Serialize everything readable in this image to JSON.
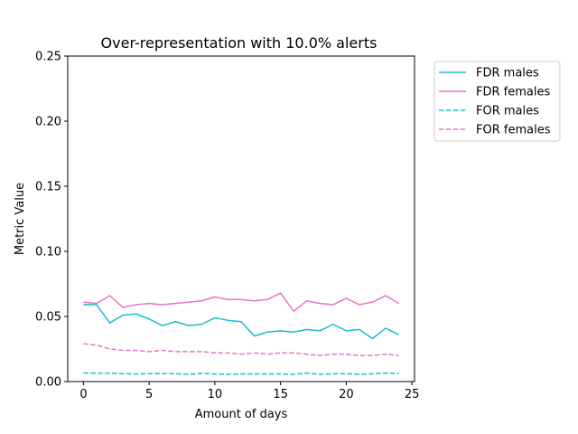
{
  "chart_data": {
    "type": "line",
    "title": "Over-representation with 10.0% alerts",
    "xlabel": "Amount of days",
    "ylabel": "Metric Value",
    "xlim": [
      -1.2,
      25.2
    ],
    "ylim": [
      0.0,
      0.25
    ],
    "xticks": [
      0,
      5,
      10,
      15,
      20,
      25
    ],
    "xtick_labels": [
      "0",
      "5",
      "10",
      "15",
      "20",
      "25"
    ],
    "yticks": [
      0.0,
      0.05,
      0.1,
      0.15,
      0.2,
      0.25
    ],
    "ytick_labels": [
      "0.00",
      "0.05",
      "0.10",
      "0.15",
      "0.20",
      "0.25"
    ],
    "grid": false,
    "legend_position": "outside-top-right",
    "x": [
      0,
      1,
      2,
      3,
      4,
      5,
      6,
      7,
      8,
      9,
      10,
      11,
      12,
      13,
      14,
      15,
      16,
      17,
      18,
      19,
      20,
      21,
      22,
      23,
      24
    ],
    "series": [
      {
        "name": "FDR males",
        "color": "#17becf",
        "style": "solid",
        "values": [
          0.059,
          0.059,
          0.045,
          0.051,
          0.052,
          0.048,
          0.043,
          0.046,
          0.043,
          0.044,
          0.049,
          0.047,
          0.046,
          0.035,
          0.038,
          0.039,
          0.038,
          0.04,
          0.039,
          0.044,
          0.039,
          0.04,
          0.033,
          0.041,
          0.036
        ]
      },
      {
        "name": "FDR females",
        "color": "#e377c2",
        "style": "solid",
        "values": [
          0.061,
          0.06,
          0.066,
          0.057,
          0.059,
          0.06,
          0.059,
          0.06,
          0.061,
          0.062,
          0.065,
          0.063,
          0.063,
          0.062,
          0.063,
          0.068,
          0.054,
          0.062,
          0.06,
          0.059,
          0.064,
          0.059,
          0.061,
          0.066,
          0.06
        ]
      },
      {
        "name": "FOR males",
        "color": "#17becf",
        "style": "dashed",
        "values": [
          0.0065,
          0.0065,
          0.0065,
          0.006,
          0.0058,
          0.006,
          0.0062,
          0.006,
          0.0055,
          0.0063,
          0.0058,
          0.0055,
          0.0058,
          0.0058,
          0.0058,
          0.0058,
          0.0055,
          0.0065,
          0.0055,
          0.006,
          0.006,
          0.0055,
          0.006,
          0.0065,
          0.0062
        ]
      },
      {
        "name": "FOR females",
        "color": "#e377c2",
        "style": "dashed",
        "values": [
          0.029,
          0.028,
          0.025,
          0.024,
          0.024,
          0.023,
          0.024,
          0.023,
          0.023,
          0.023,
          0.022,
          0.022,
          0.021,
          0.022,
          0.021,
          0.022,
          0.022,
          0.021,
          0.02,
          0.021,
          0.021,
          0.02,
          0.02,
          0.021,
          0.02
        ]
      }
    ]
  }
}
